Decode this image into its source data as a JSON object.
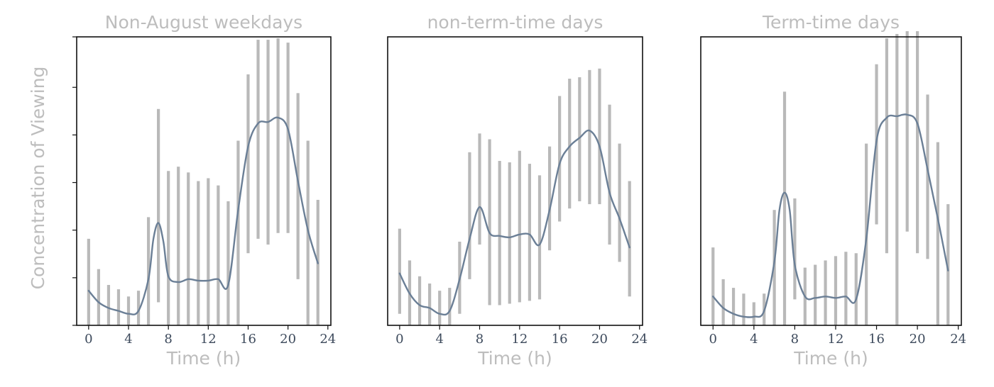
{
  "figure": {
    "ylabel": "Concentration of Viewing"
  },
  "chart_data": [
    {
      "type": "line",
      "title": "Non-August weekdays",
      "xlabel": "Time (h)",
      "ylabel": "Concentration of Viewing",
      "xlim": [
        -1.2,
        24.3
      ],
      "ylim": [
        0,
        100
      ],
      "xticks": [
        0,
        4,
        8,
        12,
        16,
        20,
        24
      ],
      "x_tick_labels": [
        "0",
        "4",
        "8",
        "12",
        "16",
        "20",
        "24"
      ],
      "grid": false,
      "series": [
        {
          "kind": "range_bars",
          "x": [
            0,
            1,
            2,
            3,
            4,
            5,
            6,
            7,
            8,
            9,
            10,
            11,
            12,
            13,
            14,
            15,
            16,
            17,
            18,
            19,
            20,
            21,
            22,
            23
          ],
          "low": [
            0,
            0,
            0,
            0,
            0,
            0,
            0,
            8,
            0,
            0,
            0,
            0,
            0,
            0,
            0,
            0,
            25,
            30,
            28,
            32,
            32,
            16,
            0,
            0
          ],
          "high": [
            30,
            19.5,
            14,
            12.5,
            10,
            12,
            37.5,
            75,
            53.5,
            55,
            53,
            50,
            51,
            48.5,
            43,
            64,
            87,
            99,
            99,
            99.5,
            98,
            80.5,
            64,
            43.5
          ]
        },
        {
          "kind": "smoothed_line",
          "x": [
            0,
            1,
            2,
            3,
            4,
            5,
            6,
            6.5,
            7,
            7.5,
            8,
            9,
            10,
            11,
            12,
            13,
            14,
            15,
            16,
            17,
            18,
            19,
            20,
            21,
            22,
            23
          ],
          "y": [
            12,
            8,
            6,
            5,
            4,
            5,
            16,
            30,
            35.5,
            29,
            17,
            15,
            16,
            15.5,
            15.5,
            16,
            14,
            40,
            62,
            70,
            70.5,
            72,
            68,
            50,
            33,
            21.5
          ]
        }
      ]
    },
    {
      "type": "line",
      "title": "non-term-time days",
      "xlabel": "Time (h)",
      "ylabel": "",
      "xlim": [
        -1.2,
        24.3
      ],
      "ylim": [
        0,
        100
      ],
      "xticks": [
        0,
        4,
        8,
        12,
        16,
        20,
        24
      ],
      "x_tick_labels": [
        "0",
        "4",
        "8",
        "12",
        "16",
        "20",
        "24"
      ],
      "grid": false,
      "series": [
        {
          "kind": "range_bars",
          "x": [
            0,
            1,
            2,
            3,
            4,
            5,
            6,
            7,
            8,
            9,
            10,
            11,
            12,
            13,
            14,
            15,
            16,
            17,
            18,
            19,
            20,
            21,
            22,
            23
          ],
          "low": [
            4,
            0,
            0,
            0,
            0,
            0,
            4,
            16,
            28,
            7,
            7,
            7.5,
            8,
            8.5,
            9,
            26,
            36,
            40.5,
            43,
            42,
            42,
            28,
            22,
            10
          ],
          "high": [
            33.5,
            22.5,
            17,
            14.5,
            12,
            13,
            29,
            60,
            66.5,
            64.5,
            57,
            56.5,
            60.5,
            56,
            52,
            62,
            79.5,
            85.5,
            86,
            88.5,
            89,
            76.5,
            63,
            50
          ]
        },
        {
          "kind": "smoothed_line",
          "x": [
            0,
            1,
            2,
            3,
            4,
            5,
            6,
            7,
            8,
            9,
            10,
            11,
            12,
            13,
            14,
            15,
            16,
            17,
            18,
            19,
            20,
            21,
            22,
            23
          ],
          "y": [
            18,
            11,
            7,
            6,
            4,
            5,
            16,
            30,
            41,
            32,
            31,
            30.5,
            31.5,
            31.5,
            28,
            40,
            56,
            62,
            65,
            67.5,
            62,
            46,
            37,
            27
          ]
        }
      ]
    },
    {
      "type": "line",
      "title": "Term-time days",
      "xlabel": "Time (h)",
      "ylabel": "",
      "xlim": [
        -1.2,
        24.3
      ],
      "ylim": [
        0,
        100
      ],
      "xticks": [
        0,
        4,
        8,
        12,
        16,
        20,
        24
      ],
      "x_tick_labels": [
        "0",
        "4",
        "8",
        "12",
        "16",
        "20",
        "24"
      ],
      "grid": false,
      "series": [
        {
          "kind": "range_bars",
          "x": [
            0,
            1,
            2,
            3,
            4,
            5,
            6,
            7,
            8,
            9,
            10,
            11,
            12,
            13,
            14,
            15,
            16,
            17,
            18,
            19,
            20,
            21,
            22,
            23
          ],
          "low": [
            0,
            0,
            0,
            0,
            0,
            0,
            0,
            0,
            9,
            0,
            0,
            0,
            0,
            0,
            0,
            0,
            35,
            25,
            0,
            32.5,
            25,
            23,
            0,
            0
          ],
          "high": [
            27,
            16,
            13,
            11,
            8,
            11,
            40,
            81,
            44,
            20,
            21,
            22.5,
            24,
            25.5,
            25,
            63,
            90.5,
            99.5,
            101,
            104.5,
            102.5,
            80,
            63.5,
            42
          ]
        },
        {
          "kind": "smoothed_line",
          "x": [
            0,
            1,
            2,
            3,
            4,
            5,
            6,
            6.5,
            7,
            7.5,
            8,
            9,
            10,
            11,
            12,
            13,
            14,
            15,
            16,
            17,
            18,
            19,
            20,
            21,
            22,
            23
          ],
          "y": [
            10,
            6,
            4,
            3,
            3,
            5,
            22,
            40,
            46,
            40,
            21,
            10,
            9.5,
            10,
            9.5,
            10,
            9,
            30,
            64,
            72,
            72.5,
            73,
            70,
            54,
            37,
            19
          ]
        }
      ]
    }
  ]
}
